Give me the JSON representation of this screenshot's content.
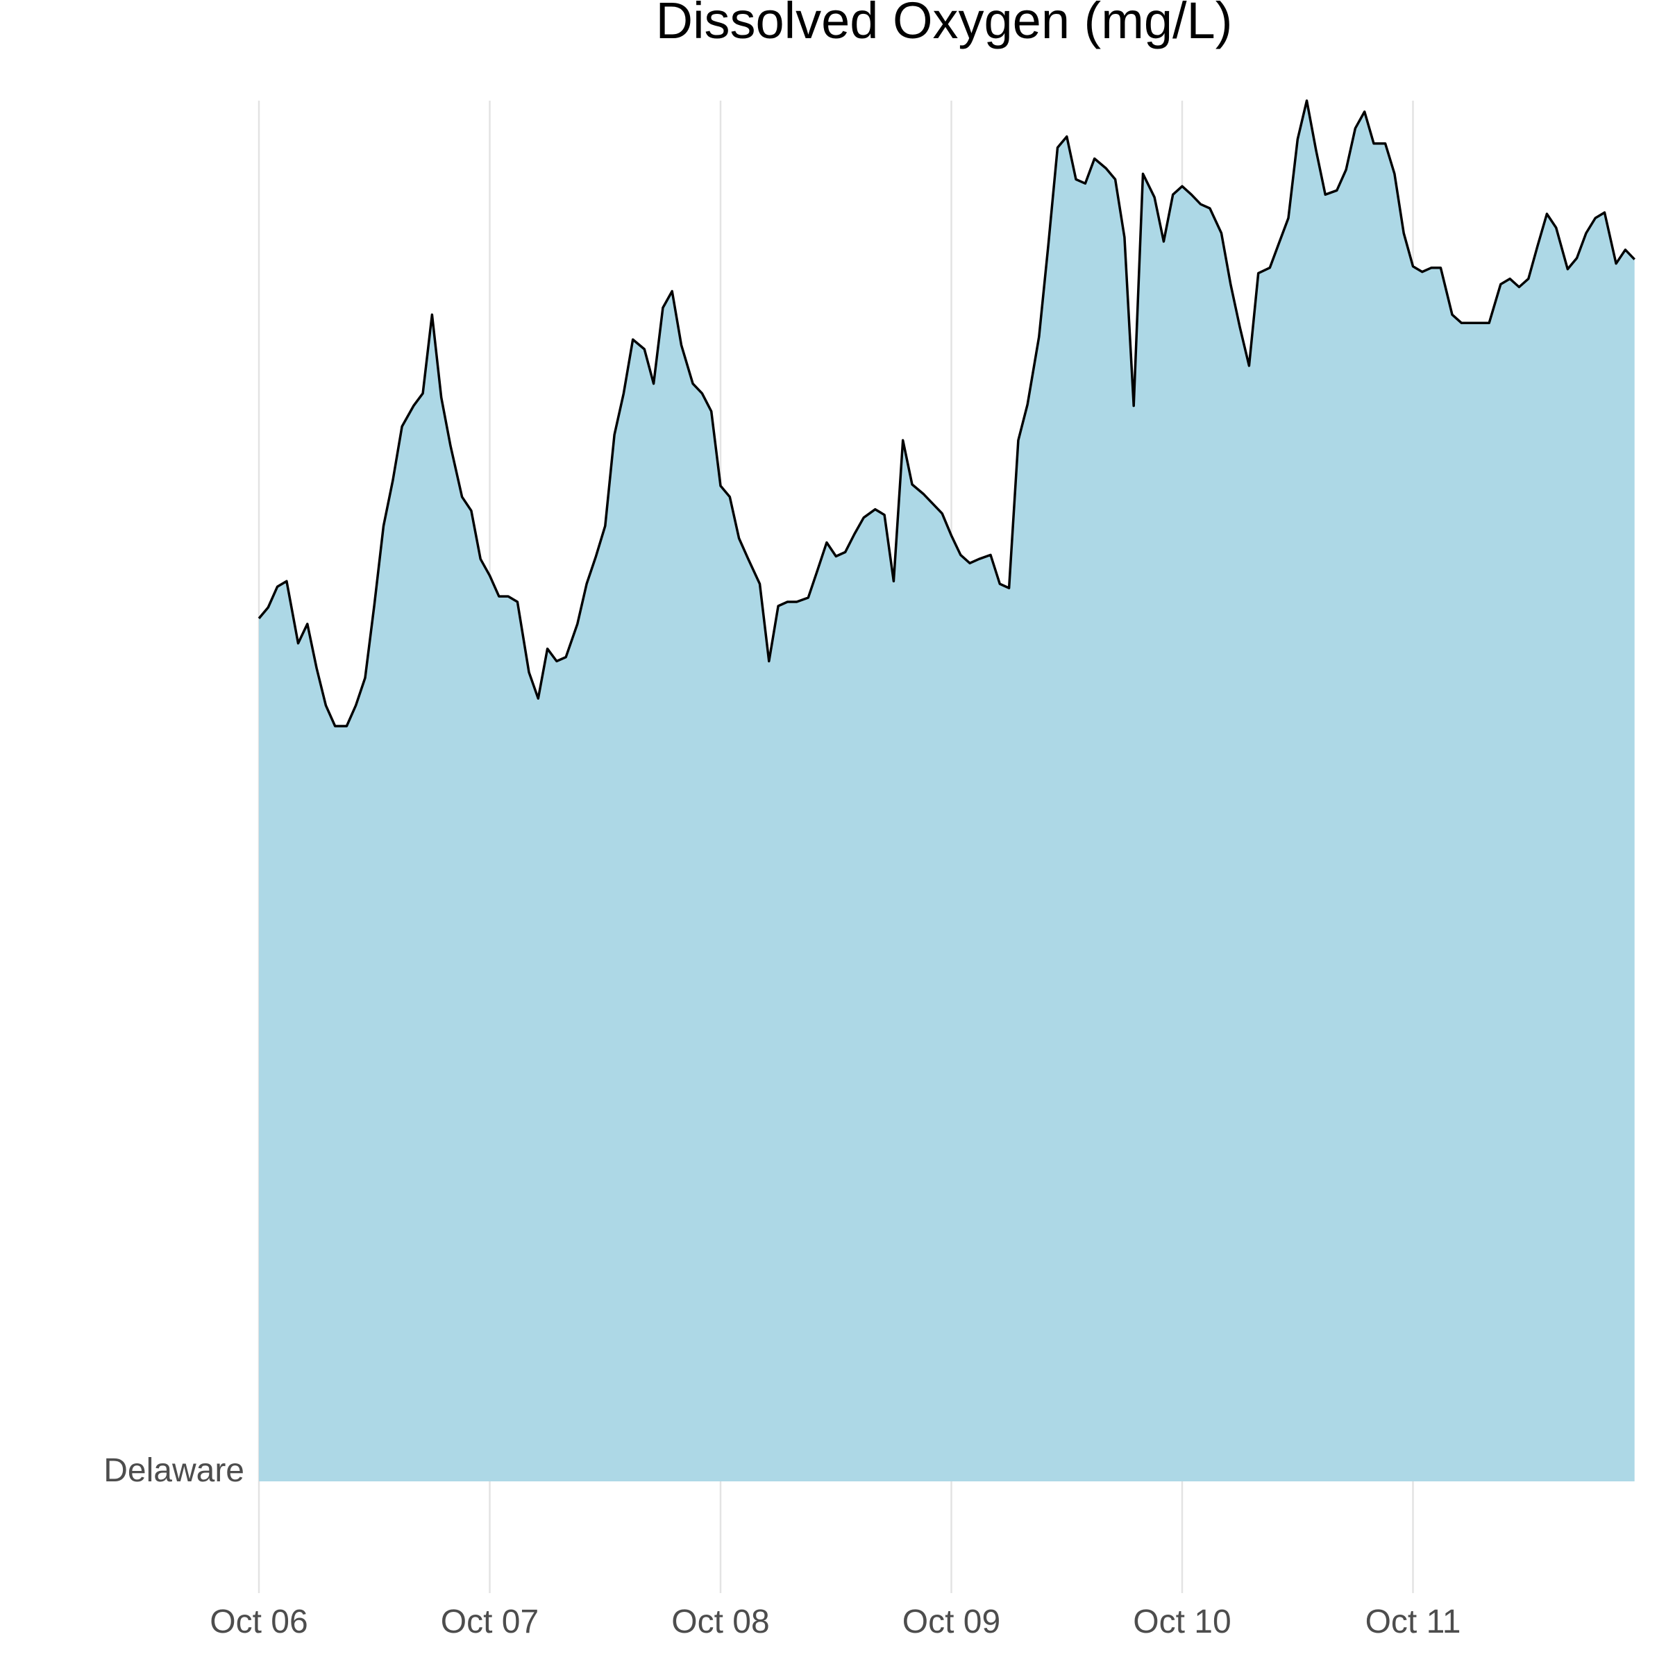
{
  "chart_data": {
    "type": "area",
    "title": "Dissolved Oxygen (mg/L)",
    "xlabel": "",
    "ylabel": "",
    "x_tick_labels": [
      "Oct 06",
      "Oct 07",
      "Oct 08",
      "Oct 09",
      "Oct 10",
      "Oct 11"
    ],
    "x_range_days": [
      0,
      5.96
    ],
    "y_category": "Delaware",
    "y_range_relative": [
      0,
      1
    ],
    "grid": "vertical",
    "legend": "none",
    "fill_color": "#ADD8E6",
    "line_color": "#000000",
    "series": [
      {
        "values": [
          [
            0.0,
            0.625
          ],
          [
            0.04,
            0.633
          ],
          [
            0.08,
            0.648
          ],
          [
            0.12,
            0.652
          ],
          [
            0.17,
            0.607
          ],
          [
            0.21,
            0.621
          ],
          [
            0.25,
            0.589
          ],
          [
            0.29,
            0.562
          ],
          [
            0.33,
            0.547
          ],
          [
            0.38,
            0.547
          ],
          [
            0.42,
            0.562
          ],
          [
            0.46,
            0.582
          ],
          [
            0.5,
            0.635
          ],
          [
            0.54,
            0.692
          ],
          [
            0.58,
            0.725
          ],
          [
            0.62,
            0.764
          ],
          [
            0.67,
            0.779
          ],
          [
            0.71,
            0.788
          ],
          [
            0.75,
            0.845
          ],
          [
            0.79,
            0.785
          ],
          [
            0.83,
            0.75
          ],
          [
            0.88,
            0.713
          ],
          [
            0.92,
            0.703
          ],
          [
            0.96,
            0.668
          ],
          [
            1.0,
            0.656
          ],
          [
            1.04,
            0.641
          ],
          [
            1.08,
            0.641
          ],
          [
            1.12,
            0.637
          ],
          [
            1.17,
            0.586
          ],
          [
            1.21,
            0.567
          ],
          [
            1.25,
            0.603
          ],
          [
            1.29,
            0.594
          ],
          [
            1.33,
            0.597
          ],
          [
            1.38,
            0.621
          ],
          [
            1.42,
            0.65
          ],
          [
            1.46,
            0.67
          ],
          [
            1.5,
            0.692
          ],
          [
            1.54,
            0.758
          ],
          [
            1.58,
            0.788
          ],
          [
            1.62,
            0.827
          ],
          [
            1.67,
            0.82
          ],
          [
            1.71,
            0.795
          ],
          [
            1.75,
            0.85
          ],
          [
            1.79,
            0.862
          ],
          [
            1.83,
            0.823
          ],
          [
            1.88,
            0.795
          ],
          [
            1.92,
            0.788
          ],
          [
            1.96,
            0.775
          ],
          [
            2.0,
            0.721
          ],
          [
            2.04,
            0.713
          ],
          [
            2.08,
            0.683
          ],
          [
            2.12,
            0.668
          ],
          [
            2.17,
            0.65
          ],
          [
            2.21,
            0.594
          ],
          [
            2.25,
            0.634
          ],
          [
            2.29,
            0.637
          ],
          [
            2.33,
            0.637
          ],
          [
            2.38,
            0.64
          ],
          [
            2.42,
            0.66
          ],
          [
            2.46,
            0.68
          ],
          [
            2.5,
            0.67
          ],
          [
            2.54,
            0.673
          ],
          [
            2.58,
            0.686
          ],
          [
            2.62,
            0.698
          ],
          [
            2.67,
            0.704
          ],
          [
            2.71,
            0.7
          ],
          [
            2.75,
            0.652
          ],
          [
            2.79,
            0.754
          ],
          [
            2.83,
            0.722
          ],
          [
            2.88,
            0.715
          ],
          [
            2.92,
            0.708
          ],
          [
            2.96,
            0.701
          ],
          [
            3.0,
            0.685
          ],
          [
            3.04,
            0.671
          ],
          [
            3.08,
            0.665
          ],
          [
            3.12,
            0.668
          ],
          [
            3.17,
            0.671
          ],
          [
            3.21,
            0.65
          ],
          [
            3.25,
            0.647
          ],
          [
            3.29,
            0.754
          ],
          [
            3.33,
            0.78
          ],
          [
            3.38,
            0.829
          ],
          [
            3.42,
            0.895
          ],
          [
            3.46,
            0.966
          ],
          [
            3.5,
            0.974
          ],
          [
            3.54,
            0.943
          ],
          [
            3.58,
            0.94
          ],
          [
            3.62,
            0.958
          ],
          [
            3.67,
            0.951
          ],
          [
            3.71,
            0.943
          ],
          [
            3.75,
            0.901
          ],
          [
            3.79,
            0.779
          ],
          [
            3.83,
            0.947
          ],
          [
            3.88,
            0.93
          ],
          [
            3.92,
            0.898
          ],
          [
            3.96,
            0.932
          ],
          [
            4.0,
            0.938
          ],
          [
            4.04,
            0.932
          ],
          [
            4.08,
            0.925
          ],
          [
            4.12,
            0.922
          ],
          [
            4.17,
            0.904
          ],
          [
            4.21,
            0.867
          ],
          [
            4.25,
            0.836
          ],
          [
            4.29,
            0.808
          ],
          [
            4.33,
            0.875
          ],
          [
            4.38,
            0.879
          ],
          [
            4.42,
            0.897
          ],
          [
            4.46,
            0.915
          ],
          [
            4.5,
            0.972
          ],
          [
            4.54,
            1.0
          ],
          [
            4.58,
            0.964
          ],
          [
            4.62,
            0.932
          ],
          [
            4.67,
            0.935
          ],
          [
            4.71,
            0.95
          ],
          [
            4.75,
            0.98
          ],
          [
            4.79,
            0.992
          ],
          [
            4.83,
            0.969
          ],
          [
            4.88,
            0.969
          ],
          [
            4.92,
            0.947
          ],
          [
            4.96,
            0.904
          ],
          [
            5.0,
            0.88
          ],
          [
            5.04,
            0.876
          ],
          [
            5.08,
            0.879
          ],
          [
            5.12,
            0.879
          ],
          [
            5.17,
            0.845
          ],
          [
            5.21,
            0.839
          ],
          [
            5.25,
            0.839
          ],
          [
            5.29,
            0.839
          ],
          [
            5.33,
            0.839
          ],
          [
            5.38,
            0.867
          ],
          [
            5.42,
            0.871
          ],
          [
            5.46,
            0.865
          ],
          [
            5.5,
            0.871
          ],
          [
            5.54,
            0.895
          ],
          [
            5.58,
            0.918
          ],
          [
            5.62,
            0.908
          ],
          [
            5.67,
            0.878
          ],
          [
            5.71,
            0.886
          ],
          [
            5.75,
            0.904
          ],
          [
            5.79,
            0.915
          ],
          [
            5.83,
            0.919
          ],
          [
            5.88,
            0.882
          ],
          [
            5.92,
            0.892
          ],
          [
            5.96,
            0.885
          ]
        ]
      }
    ]
  }
}
